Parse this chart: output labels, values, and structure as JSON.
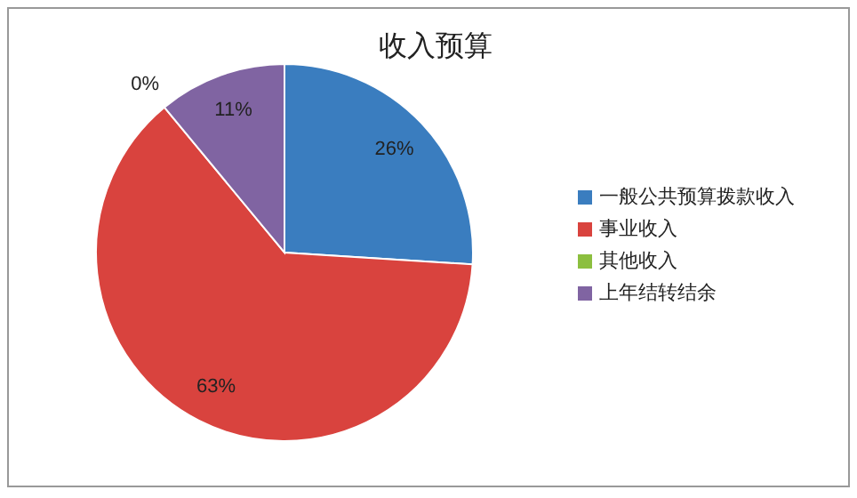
{
  "chart_data": {
    "type": "pie",
    "title": "收入预算",
    "categories": [
      "一般公共预算拨款收入",
      "事业收入",
      "其他收入",
      "上年结转结余"
    ],
    "values": [
      26,
      63,
      0,
      11
    ],
    "colors": [
      "#3a7dbf",
      "#d9433e",
      "#8cbf3f",
      "#8064a2"
    ],
    "value_labels": [
      "26%",
      "63%",
      "0%",
      "11%"
    ],
    "legend": "right"
  }
}
